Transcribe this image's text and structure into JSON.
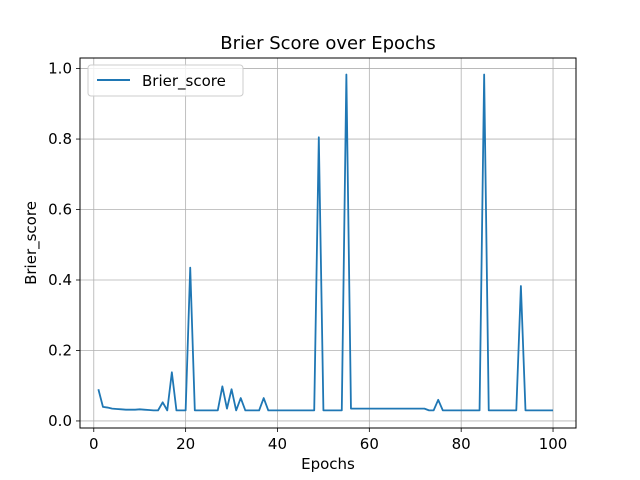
{
  "chart_data": {
    "type": "line",
    "title": "Brier Score over Epochs",
    "xlabel": "Epochs",
    "ylabel": "Brier_score",
    "xlim": [
      -3,
      105
    ],
    "ylim": [
      -0.02,
      1.03
    ],
    "xticks": [
      0,
      20,
      40,
      60,
      80,
      100
    ],
    "yticks": [
      0.0,
      0.2,
      0.4,
      0.6,
      0.8,
      1.0
    ],
    "xtick_labels": [
      "0",
      "20",
      "40",
      "60",
      "80",
      "100"
    ],
    "ytick_labels": [
      "0.0",
      "0.2",
      "0.4",
      "0.6",
      "0.8",
      "1.0"
    ],
    "grid": true,
    "legend_position": "top-left",
    "series": [
      {
        "name": "Brier_score",
        "color": "#1f77b4",
        "x": [
          1,
          2,
          3,
          4,
          5,
          6,
          7,
          8,
          9,
          10,
          11,
          12,
          13,
          14,
          15,
          16,
          17,
          18,
          19,
          20,
          21,
          22,
          23,
          24,
          25,
          26,
          27,
          28,
          29,
          30,
          31,
          32,
          33,
          34,
          35,
          36,
          37,
          38,
          39,
          40,
          41,
          42,
          43,
          44,
          45,
          46,
          47,
          48,
          49,
          50,
          51,
          52,
          53,
          54,
          55,
          56,
          57,
          58,
          59,
          60,
          61,
          62,
          63,
          64,
          65,
          66,
          67,
          68,
          69,
          70,
          71,
          72,
          73,
          74,
          75,
          76,
          77,
          78,
          79,
          80,
          81,
          82,
          83,
          84,
          85,
          86,
          87,
          88,
          89,
          90,
          91,
          92,
          93,
          94,
          95,
          96,
          97,
          98,
          99,
          100
        ],
        "y": [
          0.09,
          0.04,
          0.038,
          0.035,
          0.034,
          0.033,
          0.032,
          0.032,
          0.032,
          0.033,
          0.032,
          0.031,
          0.03,
          0.03,
          0.053,
          0.03,
          0.138,
          0.03,
          0.03,
          0.03,
          0.435,
          0.03,
          0.03,
          0.03,
          0.03,
          0.03,
          0.03,
          0.098,
          0.035,
          0.09,
          0.03,
          0.065,
          0.03,
          0.03,
          0.03,
          0.03,
          0.065,
          0.03,
          0.03,
          0.03,
          0.03,
          0.03,
          0.03,
          0.03,
          0.03,
          0.03,
          0.03,
          0.03,
          0.805,
          0.03,
          0.03,
          0.03,
          0.03,
          0.03,
          0.983,
          0.035,
          0.035,
          0.035,
          0.035,
          0.035,
          0.035,
          0.035,
          0.035,
          0.035,
          0.035,
          0.035,
          0.035,
          0.035,
          0.035,
          0.035,
          0.035,
          0.035,
          0.03,
          0.03,
          0.06,
          0.03,
          0.03,
          0.03,
          0.03,
          0.03,
          0.03,
          0.03,
          0.03,
          0.03,
          0.983,
          0.03,
          0.03,
          0.03,
          0.03,
          0.03,
          0.03,
          0.03,
          0.383,
          0.03,
          0.03,
          0.03,
          0.03,
          0.03,
          0.03,
          0.03
        ]
      }
    ]
  }
}
